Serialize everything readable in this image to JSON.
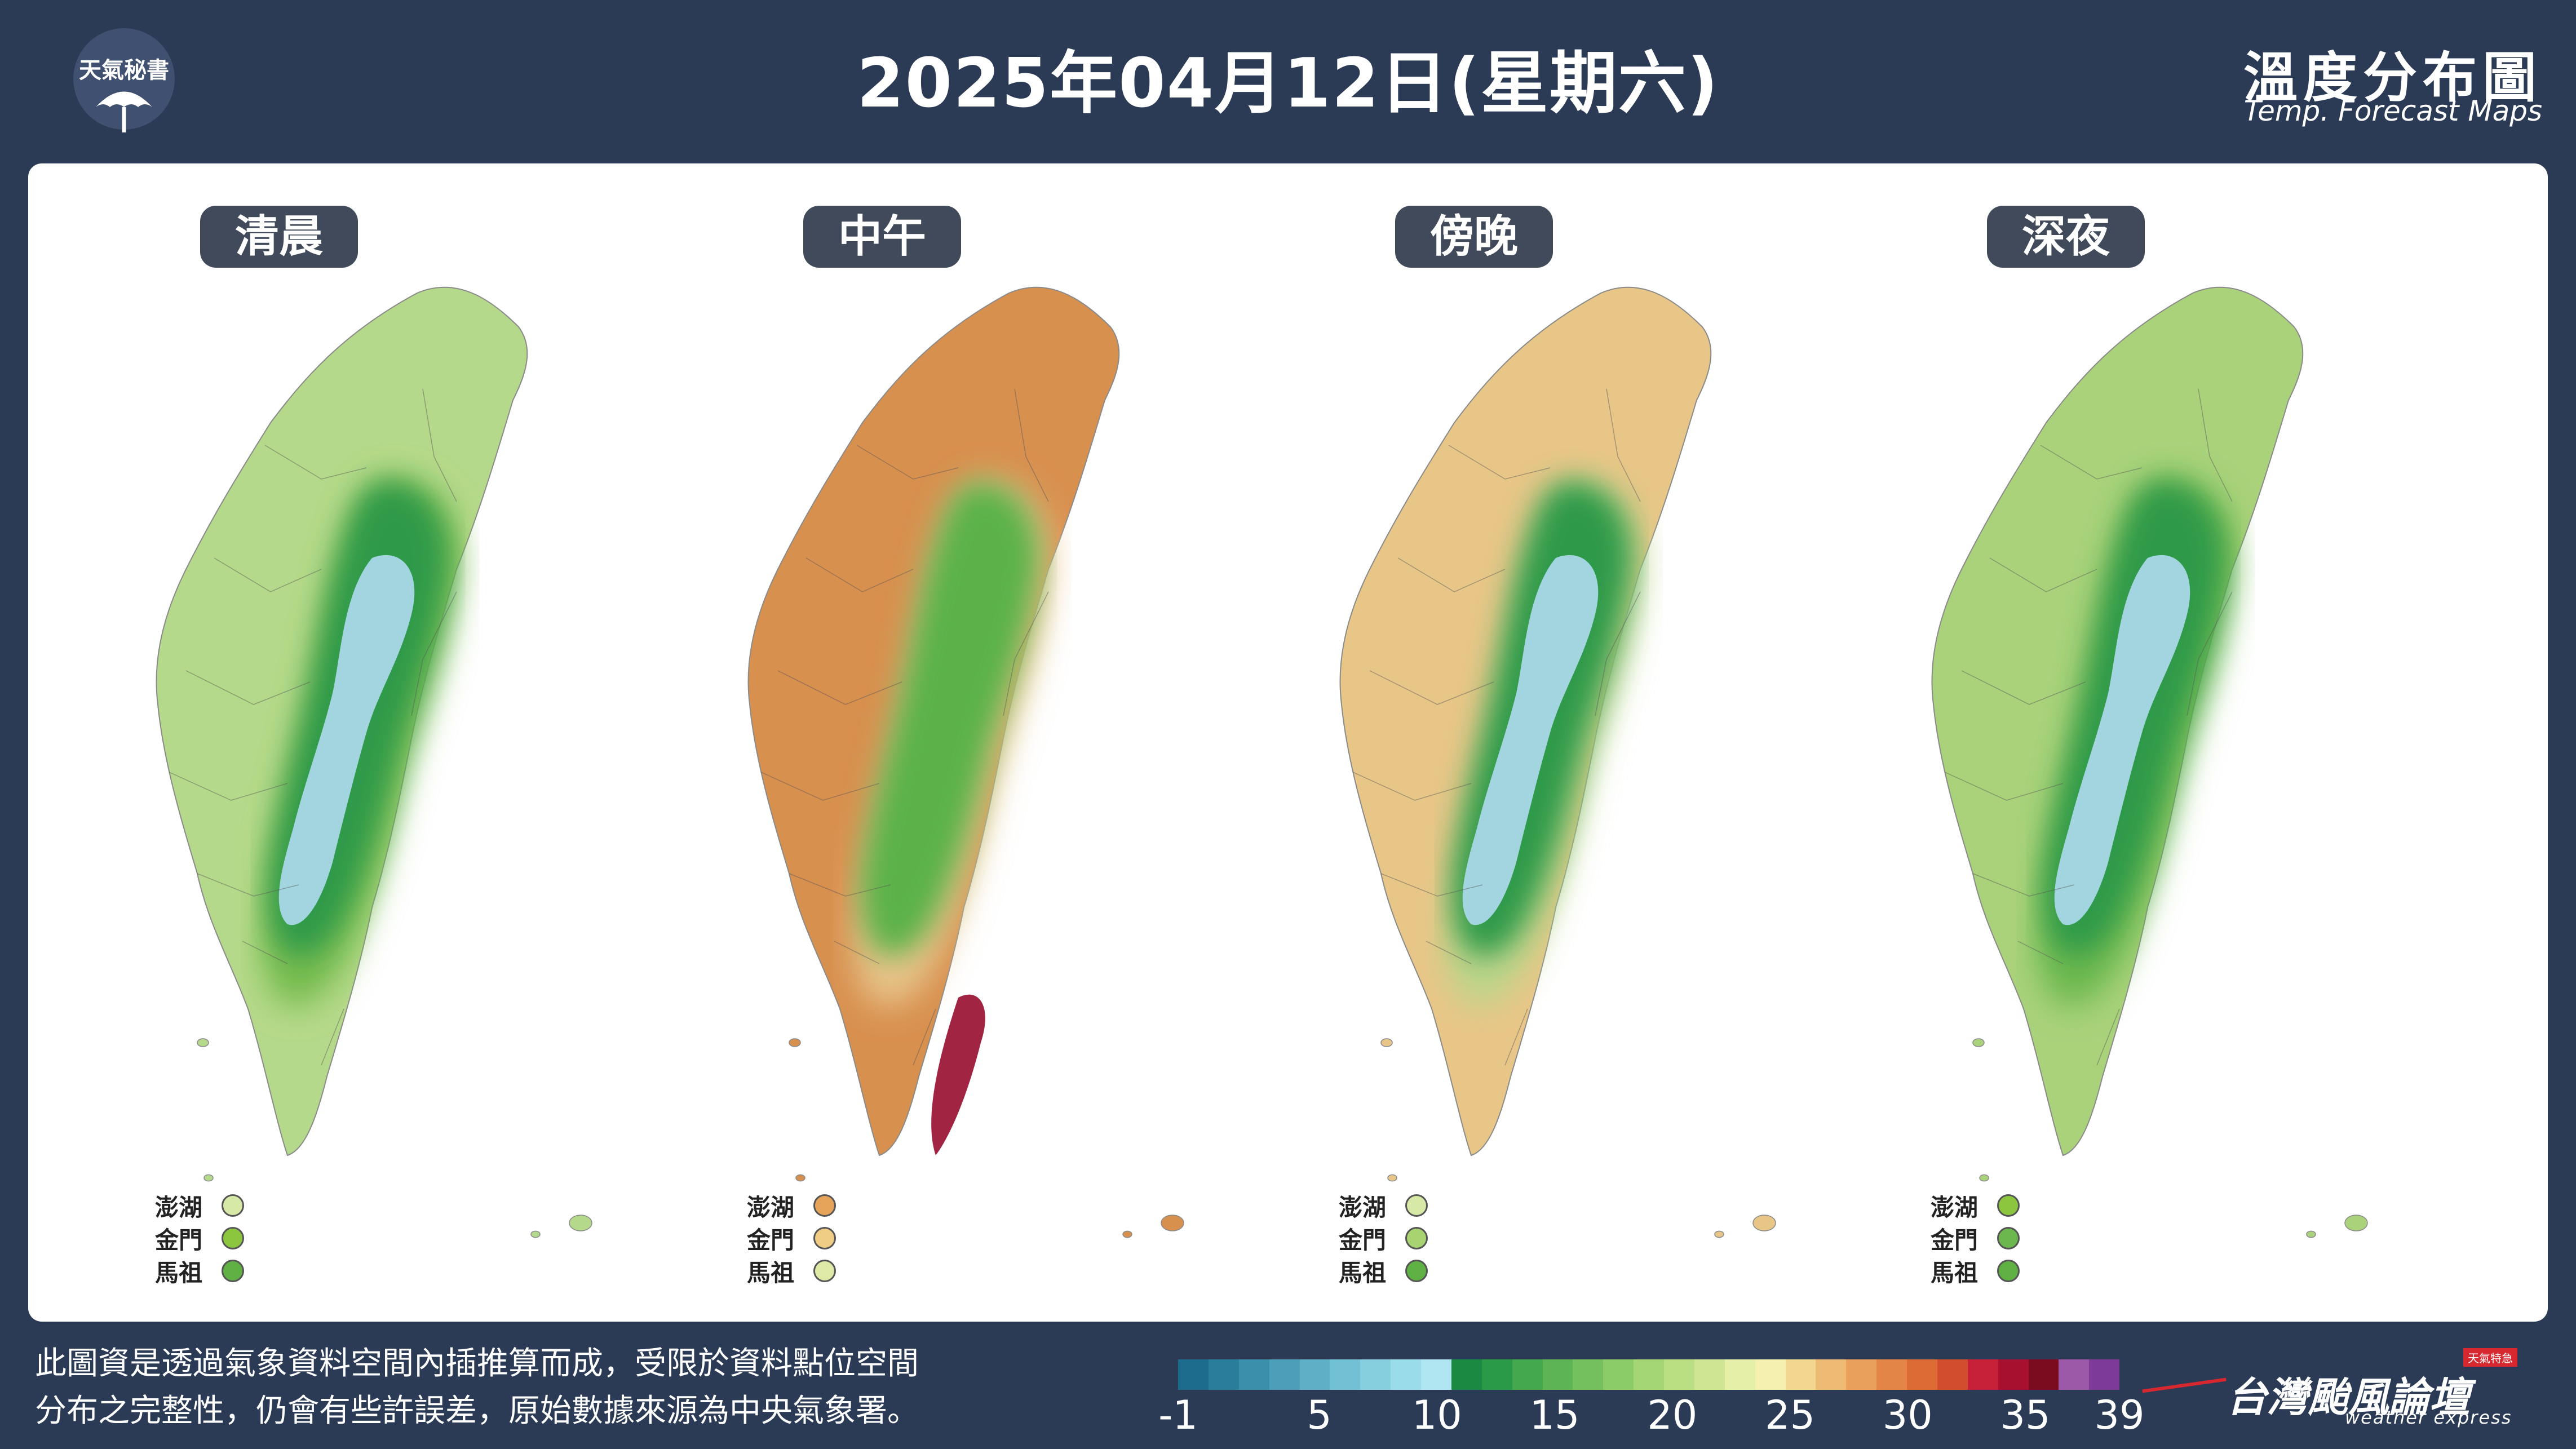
{
  "header": {
    "logo_text": "天氣秘書",
    "title": "2025年04月12日(星期六)",
    "brand_title": "溫度分布圖",
    "brand_sub": "Temp. Forecast Maps"
  },
  "maps": [
    {
      "label": "清晨",
      "outer_color": "#b5d98a",
      "mid_color": "#76bb4e",
      "inner_color": "#2f9a4a",
      "core_color": "#a9d8e8",
      "islands": [
        {
          "name": "澎湖",
          "color": "#d6e9a6"
        },
        {
          "name": "金門",
          "color": "#8cc63f"
        },
        {
          "name": "馬祖",
          "color": "#5fb143"
        }
      ]
    },
    {
      "label": "中午",
      "outer_color": "#d8904f",
      "mid_color": "#e7c48a",
      "inner_color": "#5cb248",
      "core_color": "#9d1839",
      "islands": [
        {
          "name": "澎湖",
          "color": "#e6a45a"
        },
        {
          "name": "金門",
          "color": "#f0cd85"
        },
        {
          "name": "馬祖",
          "color": "#dfeaa6"
        }
      ]
    },
    {
      "label": "傍晚",
      "outer_color": "#e8c688",
      "mid_color": "#bcd58a",
      "inner_color": "#2f9a4a",
      "core_color": "#a9d8e8",
      "islands": [
        {
          "name": "澎湖",
          "color": "#d6e9a6"
        },
        {
          "name": "金門",
          "color": "#a7d470"
        },
        {
          "name": "馬祖",
          "color": "#5fb143"
        }
      ]
    },
    {
      "label": "深夜",
      "outer_color": "#a9d27b",
      "mid_color": "#6cb84e",
      "inner_color": "#2f9a4a",
      "core_color": "#a9d8e8",
      "islands": [
        {
          "name": "澎湖",
          "color": "#8cc63f"
        },
        {
          "name": "金門",
          "color": "#6cb84e"
        },
        {
          "name": "馬祖",
          "color": "#5fb143"
        }
      ]
    }
  ],
  "footer": {
    "note_line1": "此圖資是透過氣象資料空間內插推算而成，受限於資料點位空間",
    "note_line2": "分布之完整性，仍會有些許誤差，原始數據來源為中央氣象署。",
    "brand": "台灣颱風論壇",
    "brand_sub": "weather express",
    "brand_tag": "天氣特急"
  },
  "colorbar": {
    "min": -1,
    "max": 39,
    "tick_labels": [
      "-1",
      "5",
      "10",
      "15",
      "20",
      "25",
      "30",
      "35",
      "39"
    ],
    "ticks": [
      -1,
      5,
      10,
      15,
      20,
      25,
      30,
      35,
      39
    ],
    "colors": [
      "#1d6c8e",
      "#2a7e9c",
      "#3b8fab",
      "#4d9fb9",
      "#5fb0c6",
      "#72c0d3",
      "#86cfdf",
      "#9bdcea",
      "#b0e6f1",
      "#1a8a42",
      "#2a9a48",
      "#44a84e",
      "#5cb455",
      "#74c05e",
      "#8ccc68",
      "#a4d673",
      "#bade82",
      "#cfe594",
      "#e6efa8",
      "#f6f0b0",
      "#f3d68f",
      "#eebb74",
      "#e8a05c",
      "#e28546",
      "#dc6b35",
      "#d24d2e",
      "#c7213a",
      "#a7112f",
      "#7b0b1f",
      "#9c59a8",
      "#7e3a98"
    ]
  }
}
